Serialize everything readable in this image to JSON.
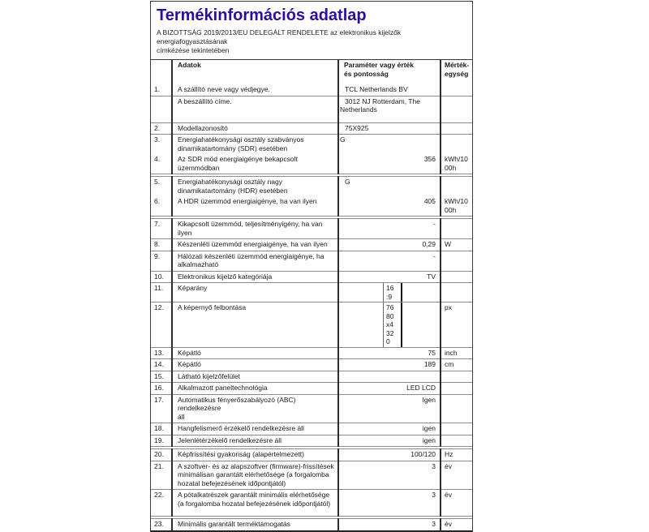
{
  "page": {
    "title": "Termékinformációs adatlap",
    "title_color": "#2e0d9b",
    "subtitle": "A BIZOTTSÁG 2019/2013/EU DELEGÁLT RENDELETE az elektronikus kijelzők energiafogyasztásának\ncímkézése tekintetében"
  },
  "table": {
    "headers": {
      "data": "Adatok",
      "param": "Paraméter vagy érték\nés pontosság",
      "unit": "Mérték-\negység"
    },
    "rows": [
      {
        "num": "1.",
        "label": "A szállító neve vagy védjegye.",
        "value": "TCL Netherlands BV",
        "value_style": "left",
        "unit": ""
      },
      {
        "num": "",
        "label": "A beszállító címe.",
        "value": "3012 NJ Rotterdam, The\nNetherlands",
        "value_style": "hang",
        "unit": "",
        "tall": true
      },
      {
        "num": "2.",
        "label": "Modellazonosító",
        "value": "75X925",
        "value_style": "left",
        "unit": ""
      },
      {
        "num": "3.",
        "label": "Energiahatékonysági osztály szabványos\ndinamikatartomány (SDR) esetében",
        "value": "G",
        "value_style": "flush",
        "unit": "",
        "no_border": true
      },
      {
        "num": "4.",
        "label": "Az SDR mód energiaigénye bekapcsolt üzemmódban",
        "value": "356",
        "value_style": "right",
        "unit": "kWh/10\n00h",
        "section_break": true
      },
      {
        "num": "5.",
        "label": "Energiahatékonysági osztály nagy\ndinamikatartomány (HDR) esetében",
        "value": "G",
        "value_style": "left",
        "unit": "",
        "no_border": true
      },
      {
        "num": "6.",
        "label": "A HDR üzemmód energiaigénye, ha van ilyen",
        "value": "405",
        "value_style": "right",
        "unit": "kWh/10\n00h",
        "section_break": true
      },
      {
        "num": "7.",
        "label": "Kikapcsolt üzemmód, teljesítményigény, ha van ilyen",
        "value": "-",
        "value_style": "right",
        "unit": ""
      },
      {
        "num": "8.",
        "label": "Készenléti üzemmód energiaigénye, ha van ilyen",
        "value": "0,29",
        "value_style": "right",
        "unit": "W"
      },
      {
        "num": "9.",
        "label": "Hálózati készenléti üzemmód energiaigénye, ha\nalkalmazható",
        "value": "-",
        "value_style": "right",
        "unit": ""
      },
      {
        "num": "10.",
        "label": "Elektronikus kijelző kategóriája",
        "value": "TV",
        "value_style": "right",
        "unit": ""
      },
      {
        "num": "11.",
        "label": "Képarány",
        "value": "16\n:9",
        "value_style": "narrow",
        "unit": ""
      },
      {
        "num": "12.",
        "label": "A képernyő felbontása",
        "value": "76\n80\nx4\n32\n0",
        "value_style": "narrow",
        "unit": "px"
      },
      {
        "num": "13.",
        "label": "Képátló",
        "value": "75",
        "value_style": "right",
        "unit": "inch"
      },
      {
        "num": "14.",
        "label": "Képátló",
        "value": "189",
        "value_style": "right",
        "unit": "cm"
      },
      {
        "num": "15.",
        "label": "Látható kijelzőfelület",
        "value": "",
        "value_style": "right",
        "unit": ""
      },
      {
        "num": "16.",
        "label": "Alkalmazott paneltechnológia",
        "value": "LED LCD",
        "value_style": "right",
        "unit": ""
      },
      {
        "num": "17.",
        "label": "Automatikus fényerőszabályozó (ABC) rendelkezésre\náll",
        "value": "Igen",
        "value_style": "right",
        "unit": ""
      },
      {
        "num": "18.",
        "label": "Hangfelismerő érzékelő rendelkezésre áll",
        "value": "igen",
        "value_style": "right",
        "unit": ""
      },
      {
        "num": "19.",
        "label": "Jelenlétérzékelő rendelkezésre áll",
        "value": "igen",
        "value_style": "right",
        "unit": "",
        "section_break": true
      },
      {
        "num": "20.",
        "label": "Képfrissítési gyakoriság (alapértelmezett)",
        "value": "100/120",
        "value_style": "right",
        "unit": "Hz"
      },
      {
        "num": "21.",
        "label": "A szoftver- és az alapszoftver (firmware)-frissítések\nminimálisan garantált elérhetősége (a forgalomba\nhozatal befejezésének időpontjától)",
        "value": "3",
        "value_style": "right",
        "unit": "év"
      },
      {
        "num": "22.",
        "label": "A pótalkatrészek garantált minimális elérhetősége\n(a forgalomba hozatal befejezésének időpontjától)",
        "value": "3",
        "value_style": "right",
        "unit": "év",
        "tall": true,
        "section_break": true
      },
      {
        "num": "23.",
        "label": "Minimális garantált terméktámogatás",
        "value": "3",
        "value_style": "right",
        "unit": "év",
        "no_border": true
      }
    ]
  }
}
